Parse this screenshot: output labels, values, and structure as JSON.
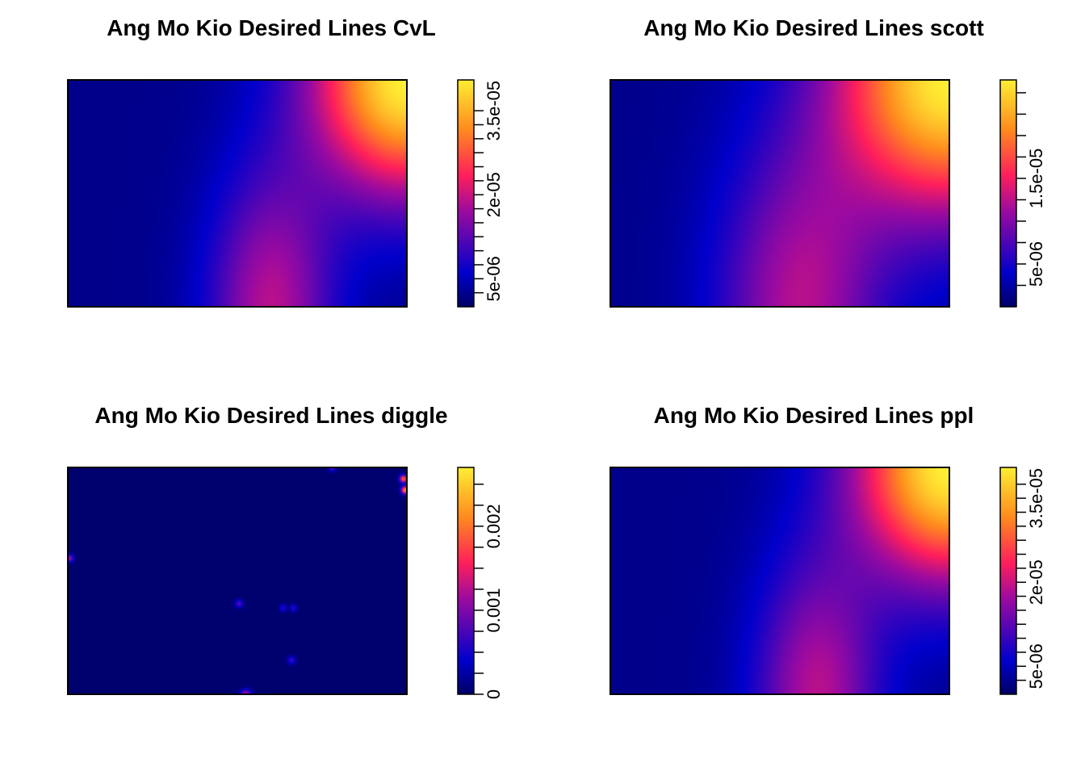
{
  "chart_data": [
    {
      "type": "heatmap",
      "title": "Ang Mo Kio Desired Lines CvL",
      "colorbar": {
        "range": [
          0,
          4.05e-05
        ],
        "ticks": [
          2.5e-06,
          5e-06,
          7.5e-06,
          1e-05,
          1.25e-05,
          1.5e-05,
          1.75e-05,
          2e-05,
          2.25e-05,
          2.5e-05,
          2.75e-05,
          3e-05,
          3.25e-05,
          3.5e-05
        ],
        "tick_labels": [
          "5e-06",
          "2e-05",
          "3.5e-05"
        ],
        "labeled_ticks": [
          5e-06,
          2e-05,
          3.5e-05
        ]
      },
      "field": {
        "max": 4.05e-05,
        "base": 2.2e-06,
        "hotspots": [
          {
            "x": 1.0,
            "y": 1.0,
            "amp": 3.85e-05,
            "sx": 0.2,
            "sy": 0.36
          },
          {
            "x": 0.6,
            "y": 0.0,
            "amp": 1.65e-05,
            "sx": 0.13,
            "sy": 0.42
          }
        ]
      }
    },
    {
      "type": "heatmap",
      "title": "Ang Mo Kio Desired Lines scott",
      "colorbar": {
        "range": [
          0,
          2.65e-05
        ],
        "ticks": [
          2.5e-06,
          5e-06,
          7.5e-06,
          1e-05,
          1.25e-05,
          1.5e-05,
          1.75e-05,
          2e-05,
          2.25e-05,
          2.5e-05
        ],
        "tick_labels": [
          "5e-06",
          "1.5e-05"
        ],
        "labeled_ticks": [
          5e-06,
          1.5e-05
        ]
      },
      "field": {
        "max": 2.65e-05,
        "base": 1.5e-06,
        "hotspots": [
          {
            "x": 1.0,
            "y": 1.0,
            "amp": 2.5e-05,
            "sx": 0.24,
            "sy": 0.42
          },
          {
            "x": 0.56,
            "y": 0.0,
            "amp": 1.05e-05,
            "sx": 0.17,
            "sy": 0.5
          }
        ]
      }
    },
    {
      "type": "heatmap",
      "title": "Ang Mo Kio Desired Lines diggle",
      "colorbar": {
        "range": [
          0,
          0.0027
        ],
        "ticks": [
          0,
          0.00025,
          0.0005,
          0.00075,
          0.001,
          0.00125,
          0.0015,
          0.00175,
          0.002,
          0.00225,
          0.0025
        ],
        "tick_labels": [
          "0",
          "0.001",
          "0.002"
        ],
        "labeled_ticks": [
          0,
          0.001,
          0.002
        ]
      },
      "field": {
        "max": 0.0027,
        "base": 3e-05,
        "hotspots": [
          {
            "x": 0.99,
            "y": 0.95,
            "amp": 0.0019,
            "sx": 0.008,
            "sy": 0.012
          },
          {
            "x": 0.995,
            "y": 0.9,
            "amp": 0.0022,
            "sx": 0.008,
            "sy": 0.012
          },
          {
            "x": 0.78,
            "y": 1.0,
            "amp": 0.0008,
            "sx": 0.008,
            "sy": 0.012
          },
          {
            "x": 0.005,
            "y": 0.6,
            "amp": 0.0011,
            "sx": 0.008,
            "sy": 0.012
          },
          {
            "x": 0.505,
            "y": 0.4,
            "amp": 0.0008,
            "sx": 0.008,
            "sy": 0.012
          },
          {
            "x": 0.635,
            "y": 0.38,
            "amp": 0.0006,
            "sx": 0.007,
            "sy": 0.011
          },
          {
            "x": 0.665,
            "y": 0.38,
            "amp": 0.0006,
            "sx": 0.007,
            "sy": 0.011
          },
          {
            "x": 0.66,
            "y": 0.15,
            "amp": 0.0007,
            "sx": 0.008,
            "sy": 0.012
          },
          {
            "x": 0.525,
            "y": 0.0,
            "amp": 0.0012,
            "sx": 0.012,
            "sy": 0.014
          }
        ]
      }
    },
    {
      "type": "heatmap",
      "title": "Ang Mo Kio Desired Lines ppl",
      "colorbar": {
        "range": [
          0,
          4.05e-05
        ],
        "ticks": [
          2.5e-06,
          5e-06,
          7.5e-06,
          1e-05,
          1.25e-05,
          1.5e-05,
          1.75e-05,
          2e-05,
          2.25e-05,
          2.5e-05,
          2.75e-05,
          3e-05,
          3.25e-05,
          3.5e-05,
          3.75e-05
        ],
        "tick_labels": [
          "5e-06",
          "2e-05",
          "3.5e-05"
        ],
        "labeled_ticks": [
          5e-06,
          2e-05,
          3.5e-05
        ]
      },
      "field": {
        "max": 4.05e-05,
        "base": 2.2e-06,
        "hotspots": [
          {
            "x": 1.0,
            "y": 1.0,
            "amp": 3.85e-05,
            "sx": 0.2,
            "sy": 0.36
          },
          {
            "x": 0.61,
            "y": 0.0,
            "amp": 1.65e-05,
            "sx": 0.13,
            "sy": 0.42
          }
        ]
      }
    }
  ]
}
